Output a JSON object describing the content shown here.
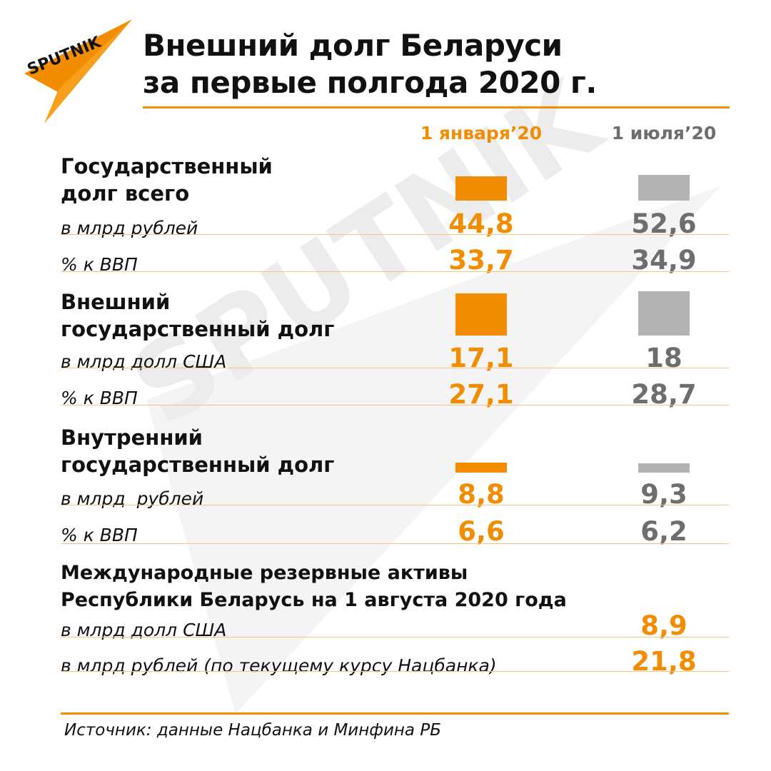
{
  "brand": {
    "logo_text": "SPUTNIK",
    "accent": "#f28c00",
    "secondary": "#b3b3b3"
  },
  "title": "Внешний долг Беларуси\nза первые полгода 2020 г.",
  "columns": {
    "jan": "1 января’20",
    "jul": "1 июля’20"
  },
  "sections": {
    "total": {
      "title": "Государственный\nдолг всего",
      "rows": [
        {
          "label": "в млрд рублей",
          "jan": "44,8",
          "jul": "52,6"
        },
        {
          "label": "% к ВВП",
          "jan": "33,7",
          "jul": "34,9"
        }
      ]
    },
    "external": {
      "title": "Внешний\nгосударственный долг",
      "rows": [
        {
          "label": "в млрд долл США",
          "jan": "17,1",
          "jul": "18"
        },
        {
          "label": "% к ВВП",
          "jan": "27,1",
          "jul": "28,7"
        }
      ]
    },
    "internal": {
      "title": "Внутренний\nгосударственный долг",
      "rows": [
        {
          "label": "в млрд  рублей",
          "jan": "8,8",
          "jul": "9,3"
        },
        {
          "label": "% к ВВП",
          "jan": "6,6",
          "jul": "6,2"
        }
      ]
    },
    "reserves": {
      "title": "Международные резервные активы\nРеспублики Беларусь на 1 августа 2020 года",
      "rows": [
        {
          "label": "в млрд долл США",
          "value": "8,9"
        },
        {
          "label": "в млрд рублей (по текущему курсу Нацбанка)",
          "value": "21,8"
        }
      ]
    }
  },
  "source": "Источник: данные Нацбанка и Минфина РБ",
  "chart_data": {
    "type": "bar",
    "categories": [
      "Государственный долг всего",
      "Внешний государственный долг",
      "Внутренний государственный долг"
    ],
    "series": [
      {
        "name": "1 января’20",
        "values": [
          33.7,
          27.1,
          6.6
        ]
      },
      {
        "name": "1 июля’20",
        "values": [
          34.9,
          28.7,
          6.2
        ]
      }
    ],
    "bar_values_pct_gdp": true,
    "ylim": [
      0,
      35
    ]
  }
}
